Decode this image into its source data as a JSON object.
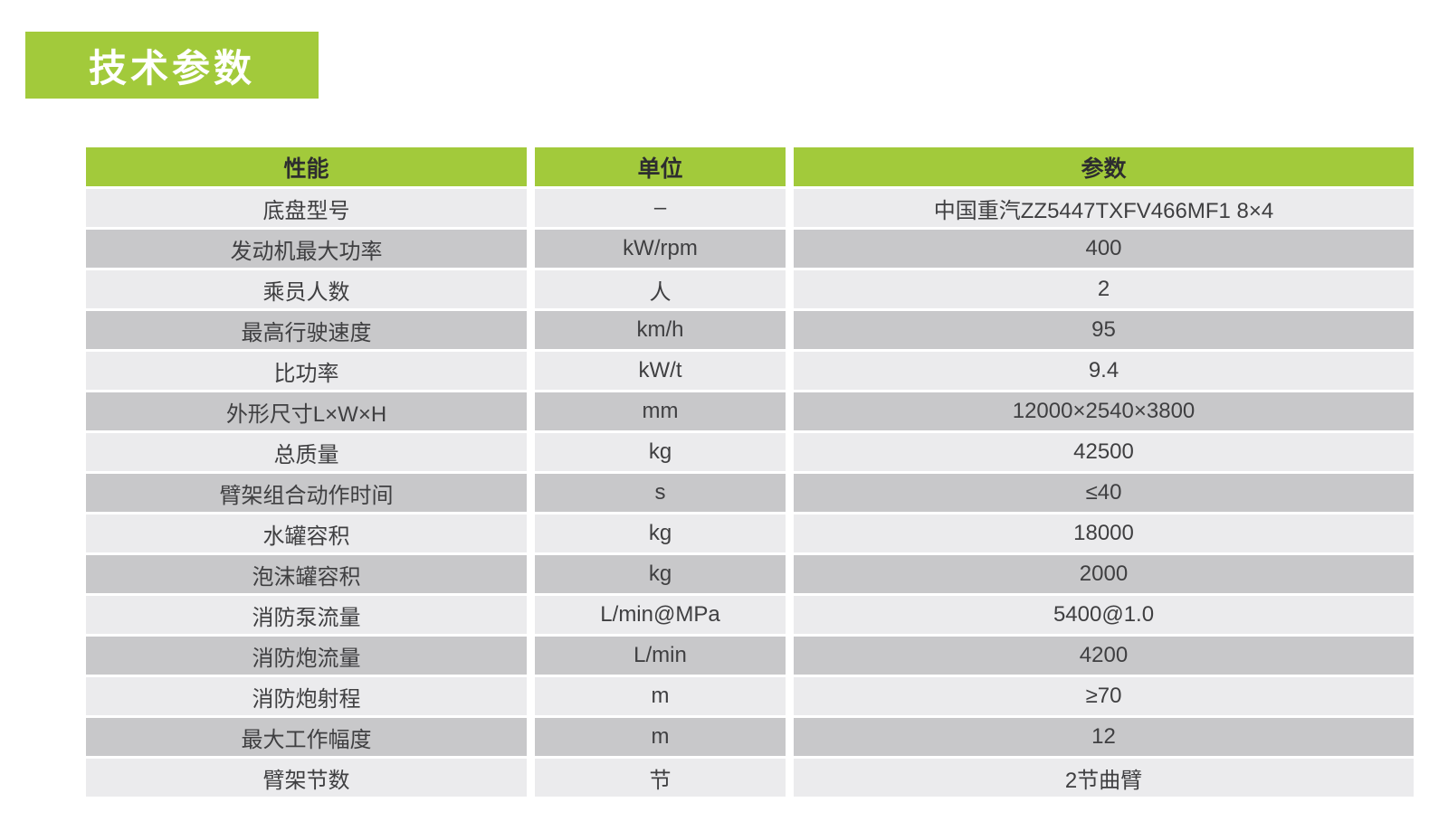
{
  "page_title": "技术参数",
  "colors": {
    "accent_green": "#a2ca3b",
    "row_light": "#ebebed",
    "row_dark": "#c8c8ca",
    "header_text": "#2d2d2f",
    "cell_text": "#3f3f41"
  },
  "table": {
    "columns": [
      {
        "label": "性能"
      },
      {
        "label": "单位"
      },
      {
        "label": "参数"
      }
    ],
    "rows": [
      {
        "name": "底盘型号",
        "unit": "–",
        "value": "中国重汽ZZ5447TXFV466MF1 8×4"
      },
      {
        "name": "发动机最大功率",
        "unit": "kW/rpm",
        "value": "400"
      },
      {
        "name": "乘员人数",
        "unit": "人",
        "value": "2"
      },
      {
        "name": "最高行驶速度",
        "unit": "km/h",
        "value": "95"
      },
      {
        "name": "比功率",
        "unit": "kW/t",
        "value": "9.4"
      },
      {
        "name": "外形尺寸L×W×H",
        "unit": "mm",
        "value": "12000×2540×3800"
      },
      {
        "name": "总质量",
        "unit": "kg",
        "value": "42500"
      },
      {
        "name": "臂架组合动作时间",
        "unit": "s",
        "value": "≤40"
      },
      {
        "name": "水罐容积",
        "unit": "kg",
        "value": "18000"
      },
      {
        "name": "泡沫罐容积",
        "unit": "kg",
        "value": "2000"
      },
      {
        "name": "消防泵流量",
        "unit": "L/min@MPa",
        "value": "5400@1.0"
      },
      {
        "name": "消防炮流量",
        "unit": "L/min",
        "value": "4200"
      },
      {
        "name": "消防炮射程",
        "unit": "m",
        "value": "≥70"
      },
      {
        "name": "最大工作幅度",
        "unit": "m",
        "value": "12"
      },
      {
        "name": "臂架节数",
        "unit": "节",
        "value": "2节曲臂"
      }
    ]
  }
}
